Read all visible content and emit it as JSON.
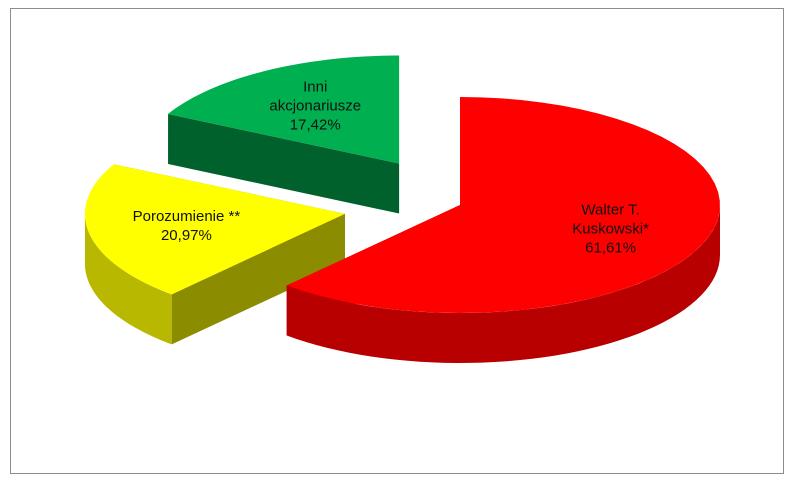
{
  "chart_data": {
    "type": "pie",
    "categories": [
      "Walter T. Kuskowski*",
      "Porozumienie **",
      "Inni akcjonariusze"
    ],
    "values": [
      61.61,
      20.97,
      17.42
    ],
    "value_labels": [
      "61,61%",
      "20,97%",
      "17,42%"
    ],
    "colors": [
      "#ff0000",
      "#ffff00",
      "#00b050"
    ],
    "exploded": true,
    "three_d": true
  }
}
